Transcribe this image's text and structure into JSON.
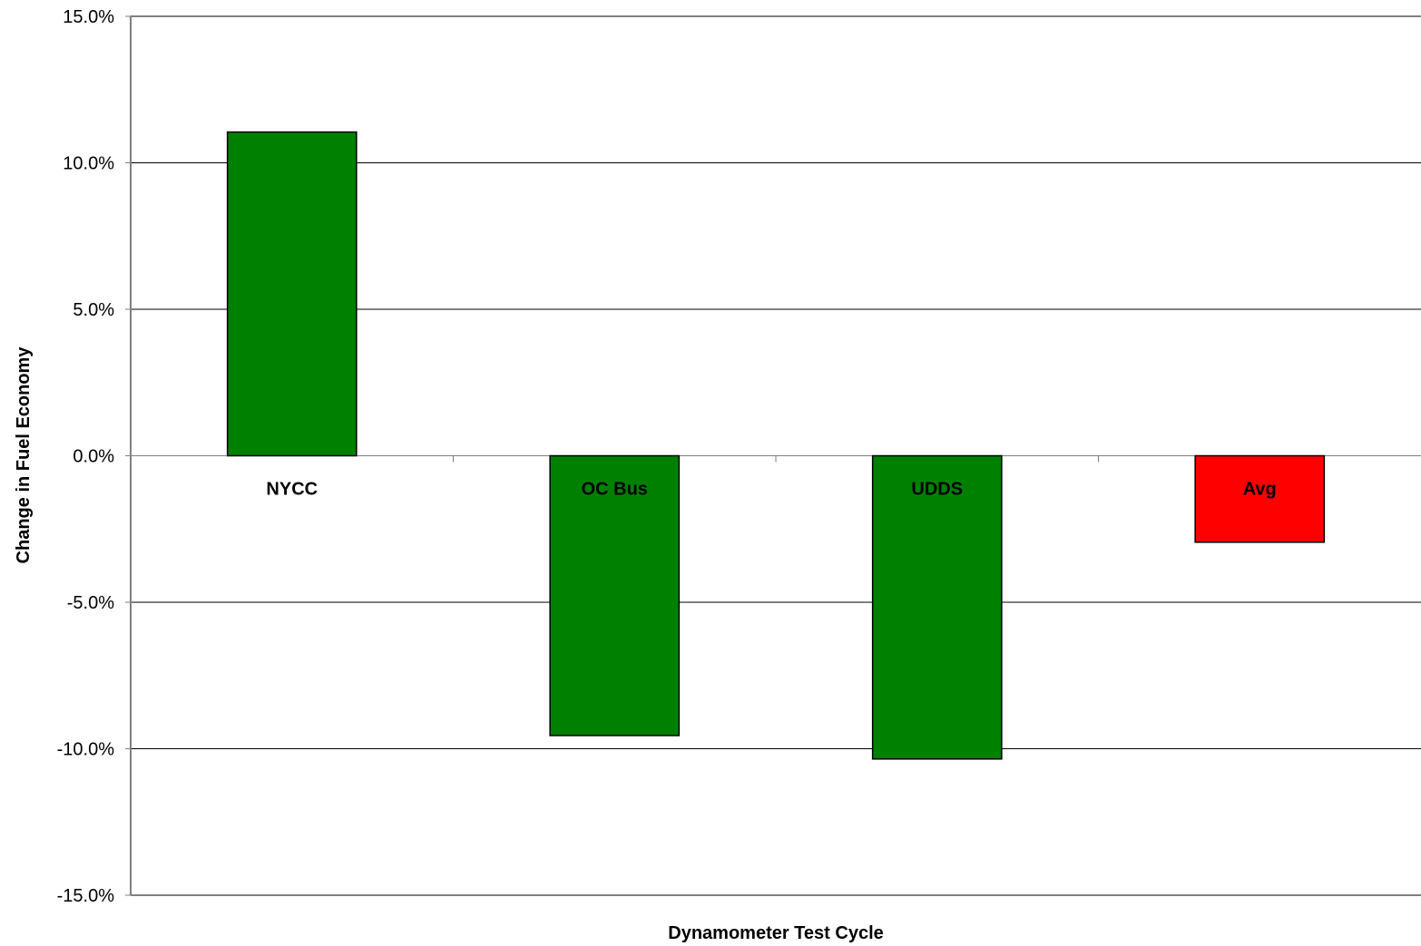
{
  "chart_data": {
    "type": "bar",
    "title": "",
    "xlabel": "Dynamometer Test Cycle",
    "ylabel": "Change in Fuel Economy",
    "categories": [
      "NYCC",
      "OC Bus",
      "UDDS",
      "Avg"
    ],
    "values": [
      11.05,
      -9.55,
      -10.35,
      -2.95
    ],
    "unit": "%",
    "ylim": [
      -15,
      15
    ],
    "yticks": [
      15,
      10,
      5,
      0,
      -5,
      -10,
      -15
    ],
    "ytick_labels": [
      "15.0%",
      "10.0%",
      "5.0%",
      "0.0%",
      "-5.0%",
      "-10.0%",
      "-15.0%"
    ],
    "grid": "horizontal",
    "legend": "none",
    "colors": {
      "bar": "#008000",
      "avg_bar": "#ff0000",
      "bar_outline": "#000000",
      "grid": "#000000",
      "axis": "#808080",
      "background": "#ffffff"
    }
  }
}
